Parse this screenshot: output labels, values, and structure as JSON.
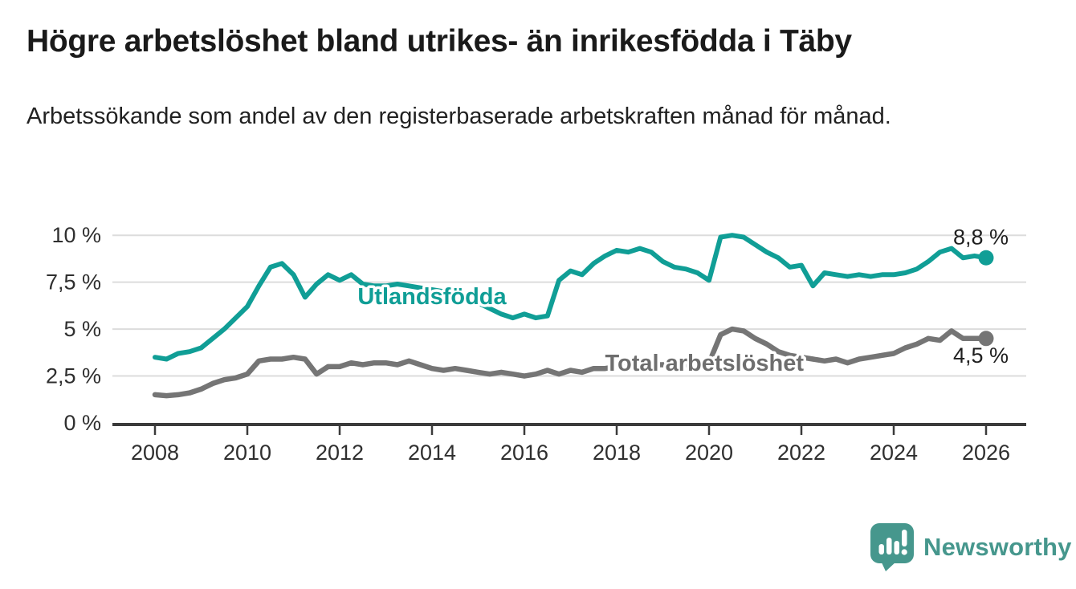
{
  "header": {
    "title": "Högre arbetslöshet bland utrikes- än inrikesfödda i Täby",
    "subtitle": "Arbetssökande som andel av den registerbaserade arbetskraften månad för månad."
  },
  "chart_data": {
    "type": "line",
    "unit": "%",
    "grid": "horizontal",
    "ylim": [
      0,
      10
    ],
    "xlim": [
      2008,
      2026
    ],
    "yticks": [
      {
        "value": 0,
        "label": "0 %"
      },
      {
        "value": 2.5,
        "label": "2,5 %"
      },
      {
        "value": 5,
        "label": "5 %"
      },
      {
        "value": 7.5,
        "label": "7,5 %"
      },
      {
        "value": 10,
        "label": "10 %"
      }
    ],
    "xticks": [
      {
        "value": 2008,
        "label": "2008"
      },
      {
        "value": 2010,
        "label": "2010"
      },
      {
        "value": 2012,
        "label": "2012"
      },
      {
        "value": 2014,
        "label": "2014"
      },
      {
        "value": 2016,
        "label": "2016"
      },
      {
        "value": 2018,
        "label": "2018"
      },
      {
        "value": 2020,
        "label": "2020"
      },
      {
        "value": 2022,
        "label": "2022"
      },
      {
        "value": 2024,
        "label": "2024"
      },
      {
        "value": 2026,
        "label": "2026"
      }
    ],
    "x": [
      2008,
      2008.25,
      2008.5,
      2008.75,
      2009,
      2009.25,
      2009.5,
      2009.75,
      2010,
      2010.25,
      2010.5,
      2010.75,
      2011,
      2011.25,
      2011.5,
      2011.75,
      2012,
      2012.25,
      2012.5,
      2012.75,
      2013,
      2013.25,
      2013.5,
      2013.75,
      2014,
      2014.25,
      2014.5,
      2014.75,
      2015,
      2015.25,
      2015.5,
      2015.75,
      2016,
      2016.25,
      2016.5,
      2016.75,
      2017,
      2017.25,
      2017.5,
      2017.75,
      2018,
      2018.25,
      2018.5,
      2018.75,
      2019,
      2019.25,
      2019.5,
      2019.75,
      2020,
      2020.25,
      2020.5,
      2020.75,
      2021,
      2021.25,
      2021.5,
      2021.75,
      2022,
      2022.25,
      2022.5,
      2022.75,
      2023,
      2023.25,
      2023.5,
      2023.75,
      2024,
      2024.25,
      2024.5,
      2024.75,
      2025,
      2025.25,
      2025.5,
      2025.75,
      2026
    ],
    "series": [
      {
        "name": "Utlandsfödda",
        "color": "#109e96",
        "label_color": "#109e96",
        "end_label": "8,8 %",
        "end_value": 8.8,
        "label_at": {
          "year": 2014.0,
          "value": 6.75
        },
        "end_label_offset": {
          "dx": 28,
          "dy": -17
        },
        "values": [
          3.5,
          3.4,
          3.7,
          3.8,
          4.0,
          4.5,
          5.0,
          5.6,
          6.2,
          7.3,
          8.3,
          8.5,
          7.9,
          6.7,
          7.4,
          7.9,
          7.6,
          7.9,
          7.4,
          7.3,
          7.3,
          7.4,
          7.3,
          7.2,
          7.1,
          7.0,
          6.8,
          6.6,
          6.4,
          6.1,
          5.8,
          5.6,
          5.8,
          5.6,
          5.7,
          7.6,
          8.1,
          7.9,
          8.5,
          8.9,
          9.2,
          9.1,
          9.3,
          9.1,
          8.6,
          8.3,
          8.2,
          8.0,
          7.6,
          9.9,
          10.0,
          9.9,
          9.5,
          9.1,
          8.8,
          8.3,
          8.4,
          7.3,
          8.0,
          7.9,
          7.8,
          7.9,
          7.8,
          7.9,
          7.9,
          8.0,
          8.2,
          8.6,
          9.1,
          9.3,
          8.8,
          8.9,
          8.8
        ]
      },
      {
        "name": "Total arbetslöshet",
        "color": "#757575",
        "label_color": "#6e6e6e",
        "end_label": "4,5 %",
        "end_value": 4.5,
        "label_at": {
          "year": 2019.9,
          "value": 3.2
        },
        "end_label_offset": {
          "dx": 28,
          "dy": 30
        },
        "values": [
          1.5,
          1.45,
          1.5,
          1.6,
          1.8,
          2.1,
          2.3,
          2.4,
          2.6,
          3.3,
          3.4,
          3.4,
          3.5,
          3.4,
          2.6,
          3.0,
          3.0,
          3.2,
          3.1,
          3.2,
          3.2,
          3.1,
          3.3,
          3.1,
          2.9,
          2.8,
          2.9,
          2.8,
          2.7,
          2.6,
          2.7,
          2.6,
          2.5,
          2.6,
          2.8,
          2.6,
          2.8,
          2.7,
          2.9,
          2.9,
          3.0,
          3.0,
          3.1,
          3.1,
          3.1,
          3.2,
          3.1,
          3.2,
          3.2,
          4.7,
          5.0,
          4.9,
          4.5,
          4.2,
          3.8,
          3.6,
          3.5,
          3.4,
          3.3,
          3.4,
          3.2,
          3.4,
          3.5,
          3.6,
          3.7,
          4.0,
          4.2,
          4.5,
          4.4,
          4.9,
          4.5,
          4.5,
          4.5
        ]
      }
    ]
  },
  "footer": {
    "brand": "Newsworthy"
  },
  "colors": {
    "accent_teal": "#109e96",
    "line_gray": "#757575",
    "grid": "#dcdcdc",
    "axis": "#3b3b3b",
    "text_dark": "#1a1a1a",
    "brand_teal": "#46978d"
  }
}
